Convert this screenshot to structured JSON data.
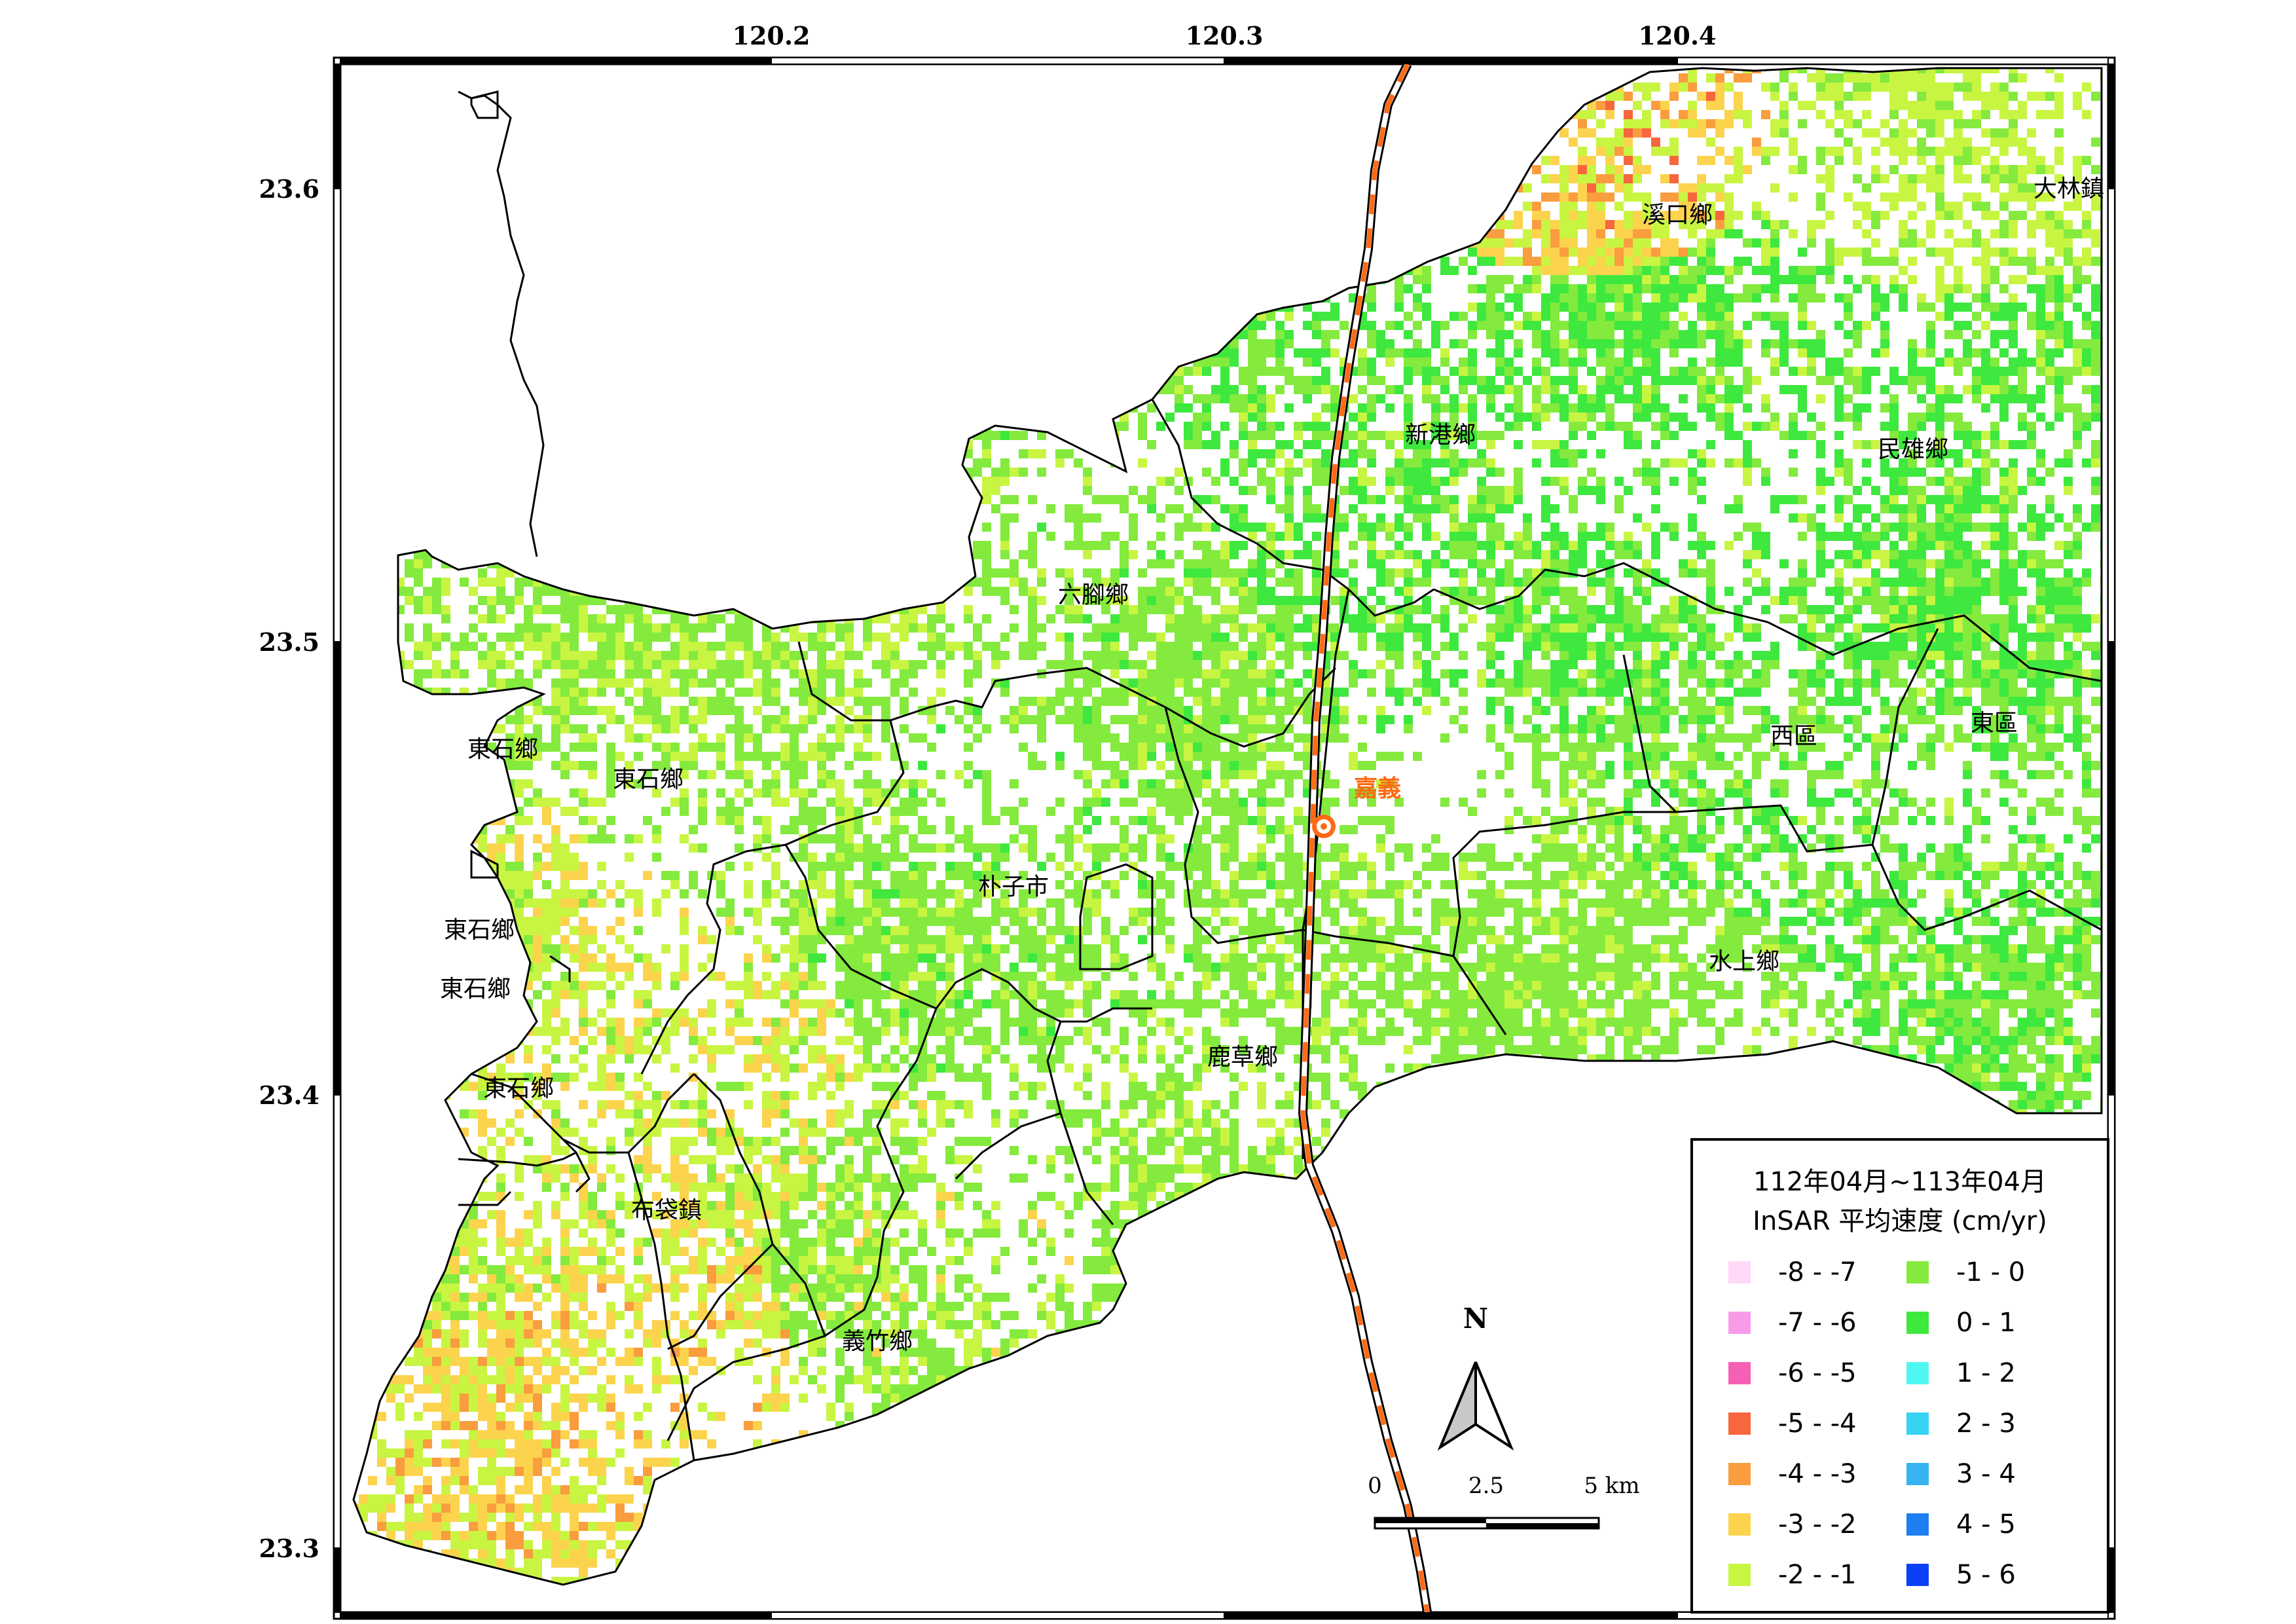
{
  "map": {
    "x_ticks": [
      "120.2",
      "120.3",
      "120.4"
    ],
    "y_ticks": [
      "23.6",
      "23.5",
      "23.4",
      "23.3"
    ],
    "station": "嘉義",
    "places": [
      "溪口鄉",
      "大林鎮",
      "新港鄉",
      "民雄鄉",
      "六腳鄉",
      "東石鄉",
      "東石鄉",
      "西區",
      "東區",
      "朴子市",
      "東石鄉",
      "東石鄉",
      "水上鄉",
      "東石鄉",
      "鹿草鄉",
      "布袋鎮",
      "義竹鄉"
    ],
    "north_label": "N",
    "scale_labels": [
      "0",
      "2.5",
      "5 km"
    ]
  },
  "legend": {
    "title_line1": "112年04月~113年04月",
    "title_line2": "InSAR 平均速度 (cm/yr)",
    "classes_left": [
      {
        "label": "-8 - -7",
        "color": "#ffd9f5"
      },
      {
        "label": "-7 - -6",
        "color": "#f79be8"
      },
      {
        "label": "-6 - -5",
        "color": "#f55fb4"
      },
      {
        "label": "-5 - -4",
        "color": "#f7663c"
      },
      {
        "label": "-4 - -3",
        "color": "#f99d3e"
      },
      {
        "label": "-3 - -2",
        "color": "#fcd34d"
      },
      {
        "label": "-2 - -1",
        "color": "#c8f542"
      }
    ],
    "classes_right": [
      {
        "label": "-1 - 0",
        "color": "#84ea3e"
      },
      {
        "label": "0 - 1",
        "color": "#3ee83e"
      },
      {
        "label": "1 - 2",
        "color": "#4ff7f2"
      },
      {
        "label": "2 - 3",
        "color": "#36d4f2"
      },
      {
        "label": "3 - 4",
        "color": "#36b4f2"
      },
      {
        "label": "4 - 5",
        "color": "#1e7ff2"
      },
      {
        "label": "5 - 6",
        "color": "#0c40f7"
      }
    ]
  }
}
